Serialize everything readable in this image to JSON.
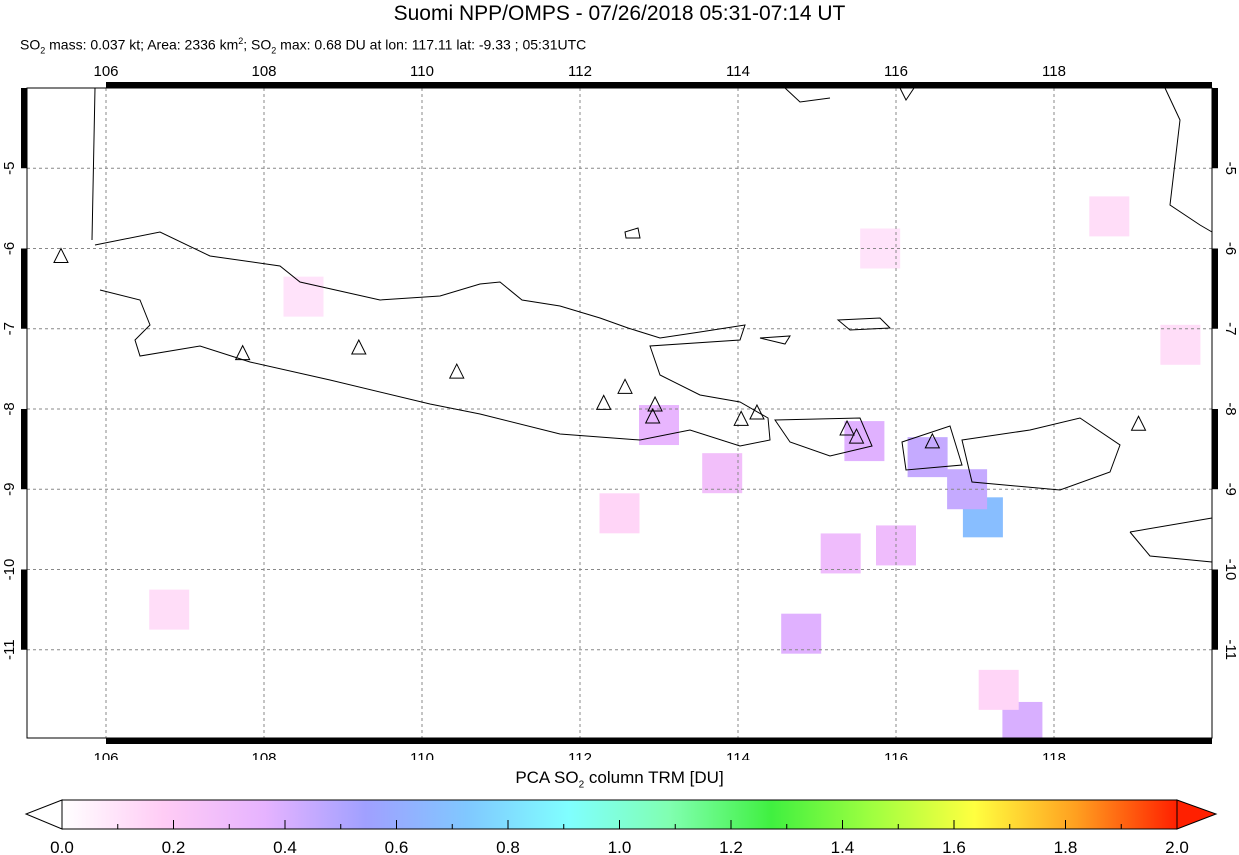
{
  "title": "Suomi NPP/OMPS - 07/26/2018 05:31-07:14 UT",
  "subtitle": {
    "pre": "SO",
    "sub": "2",
    "mass": " mass: 0.037 kt; Area: 2336 km",
    "sup": "2",
    "mid": "; SO",
    "max": " max: 0.68 DU at lon: 117.11 lat: -9.33 ; 05:31UTC"
  },
  "map": {
    "lon_range": [
      105,
      120
    ],
    "lat_range": [
      -12.1,
      -4
    ],
    "lon_ticks": [
      "106",
      "108",
      "110",
      "112",
      "114",
      "116",
      "118"
    ],
    "lat_ticks": [
      "-5",
      "-6",
      "-7",
      "-8",
      "-9",
      "-10",
      "-11"
    ],
    "grid": "dashed",
    "volcanoes": [
      [
        105.43,
        -6.1
      ],
      [
        107.73,
        -7.31
      ],
      [
        109.2,
        -7.24
      ],
      [
        110.44,
        -7.54
      ],
      [
        112.3,
        -7.93
      ],
      [
        112.57,
        -7.73
      ],
      [
        112.95,
        -7.95
      ],
      [
        112.92,
        -8.1
      ],
      [
        114.04,
        -8.13
      ],
      [
        114.24,
        -8.05
      ],
      [
        115.38,
        -8.25
      ],
      [
        115.5,
        -8.35
      ],
      [
        116.46,
        -8.41
      ],
      [
        119.07,
        -8.19
      ]
    ],
    "so2_cells": [
      {
        "lon": 117.1,
        "lat": -9.35,
        "value": 0.68
      },
      {
        "lon": 116.9,
        "lat": -9.0,
        "value": 0.45
      },
      {
        "lon": 116.4,
        "lat": -8.6,
        "value": 0.45
      },
      {
        "lon": 115.6,
        "lat": -8.4,
        "value": 0.38
      },
      {
        "lon": 114.8,
        "lat": -10.8,
        "value": 0.38
      },
      {
        "lon": 113.0,
        "lat": -8.2,
        "value": 0.35
      },
      {
        "lon": 117.6,
        "lat": -11.9,
        "value": 0.4
      },
      {
        "lon": 115.3,
        "lat": -9.8,
        "value": 0.3
      },
      {
        "lon": 113.8,
        "lat": -8.8,
        "value": 0.28
      },
      {
        "lon": 116.0,
        "lat": -9.7,
        "value": 0.3
      },
      {
        "lon": 112.5,
        "lat": -9.3,
        "value": 0.15
      },
      {
        "lon": 108.5,
        "lat": -6.6,
        "value": 0.1
      },
      {
        "lon": 106.8,
        "lat": -10.5,
        "value": 0.12
      },
      {
        "lon": 118.7,
        "lat": -5.6,
        "value": 0.12
      },
      {
        "lon": 115.8,
        "lat": -6.0,
        "value": 0.1
      },
      {
        "lon": 119.6,
        "lat": -7.2,
        "value": 0.12
      },
      {
        "lon": 117.3,
        "lat": -11.5,
        "value": 0.15
      }
    ]
  },
  "colorbar": {
    "label_pre": "PCA SO",
    "label_sub": "2",
    "label_post": " column TRM [DU]",
    "ticks": [
      "0.0",
      "0.2",
      "0.4",
      "0.6",
      "0.8",
      "1.0",
      "1.2",
      "1.4",
      "1.6",
      "1.8",
      "2.0"
    ],
    "range": [
      0,
      2
    ],
    "colors": [
      "#ffffff",
      "#ffccf5",
      "#e6b3ff",
      "#a0a0ff",
      "#80c8ff",
      "#80ffff",
      "#80ffb0",
      "#40f040",
      "#a0ff40",
      "#ffff40",
      "#ffa020",
      "#ff2000"
    ]
  }
}
